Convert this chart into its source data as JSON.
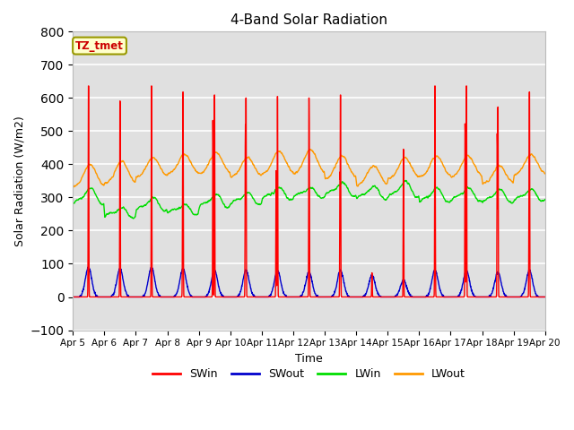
{
  "title": "4-Band Solar Radiation",
  "xlabel": "Time",
  "ylabel": "Solar Radiation (W/m2)",
  "ylim": [
    -100,
    800
  ],
  "x_tick_labels": [
    "Apr 5",
    "Apr 6",
    "Apr 7",
    "Apr 8",
    "Apr 9",
    "Apr 10",
    "Apr 11",
    "Apr 12",
    "Apr 13",
    "Apr 14",
    "Apr 15",
    "Apr 16",
    "Apr 17",
    "Apr 18",
    "Apr 19",
    "Apr 20"
  ],
  "bg_color": "#e0e0e0",
  "fig_color": "#ffffff",
  "legend_label": "TZ_tmet",
  "colors": {
    "SWin": "#ff0000",
    "SWout": "#0000cc",
    "LWin": "#00dd00",
    "LWout": "#ff9900"
  },
  "total_days": 15,
  "samples_per_day": 144,
  "SWin_peaks": [
    700,
    650,
    700,
    680,
    670,
    660,
    665,
    660,
    670,
    80,
    490,
    700,
    700,
    630,
    680
  ],
  "SWin_has_double": [
    true,
    true,
    false,
    true,
    true,
    true,
    true,
    true,
    true,
    false,
    false,
    true,
    true,
    true,
    true
  ],
  "SWout_peaks": [
    90,
    85,
    90,
    85,
    80,
    80,
    80,
    75,
    80,
    65,
    50,
    80,
    80,
    75,
    80
  ],
  "LWin_day_base": [
    280,
    240,
    260,
    250,
    270,
    280,
    295,
    300,
    305,
    295,
    300,
    285,
    290,
    285,
    290
  ],
  "LWin_day_amp": [
    50,
    30,
    40,
    30,
    40,
    35,
    35,
    30,
    40,
    40,
    50,
    45,
    40,
    40,
    35
  ],
  "LWout_day_base": [
    330,
    340,
    360,
    370,
    370,
    360,
    370,
    370,
    355,
    335,
    355,
    360,
    360,
    340,
    365
  ],
  "LWout_day_amp": [
    70,
    70,
    60,
    60,
    65,
    60,
    70,
    75,
    70,
    60,
    65,
    65,
    65,
    55,
    65
  ]
}
